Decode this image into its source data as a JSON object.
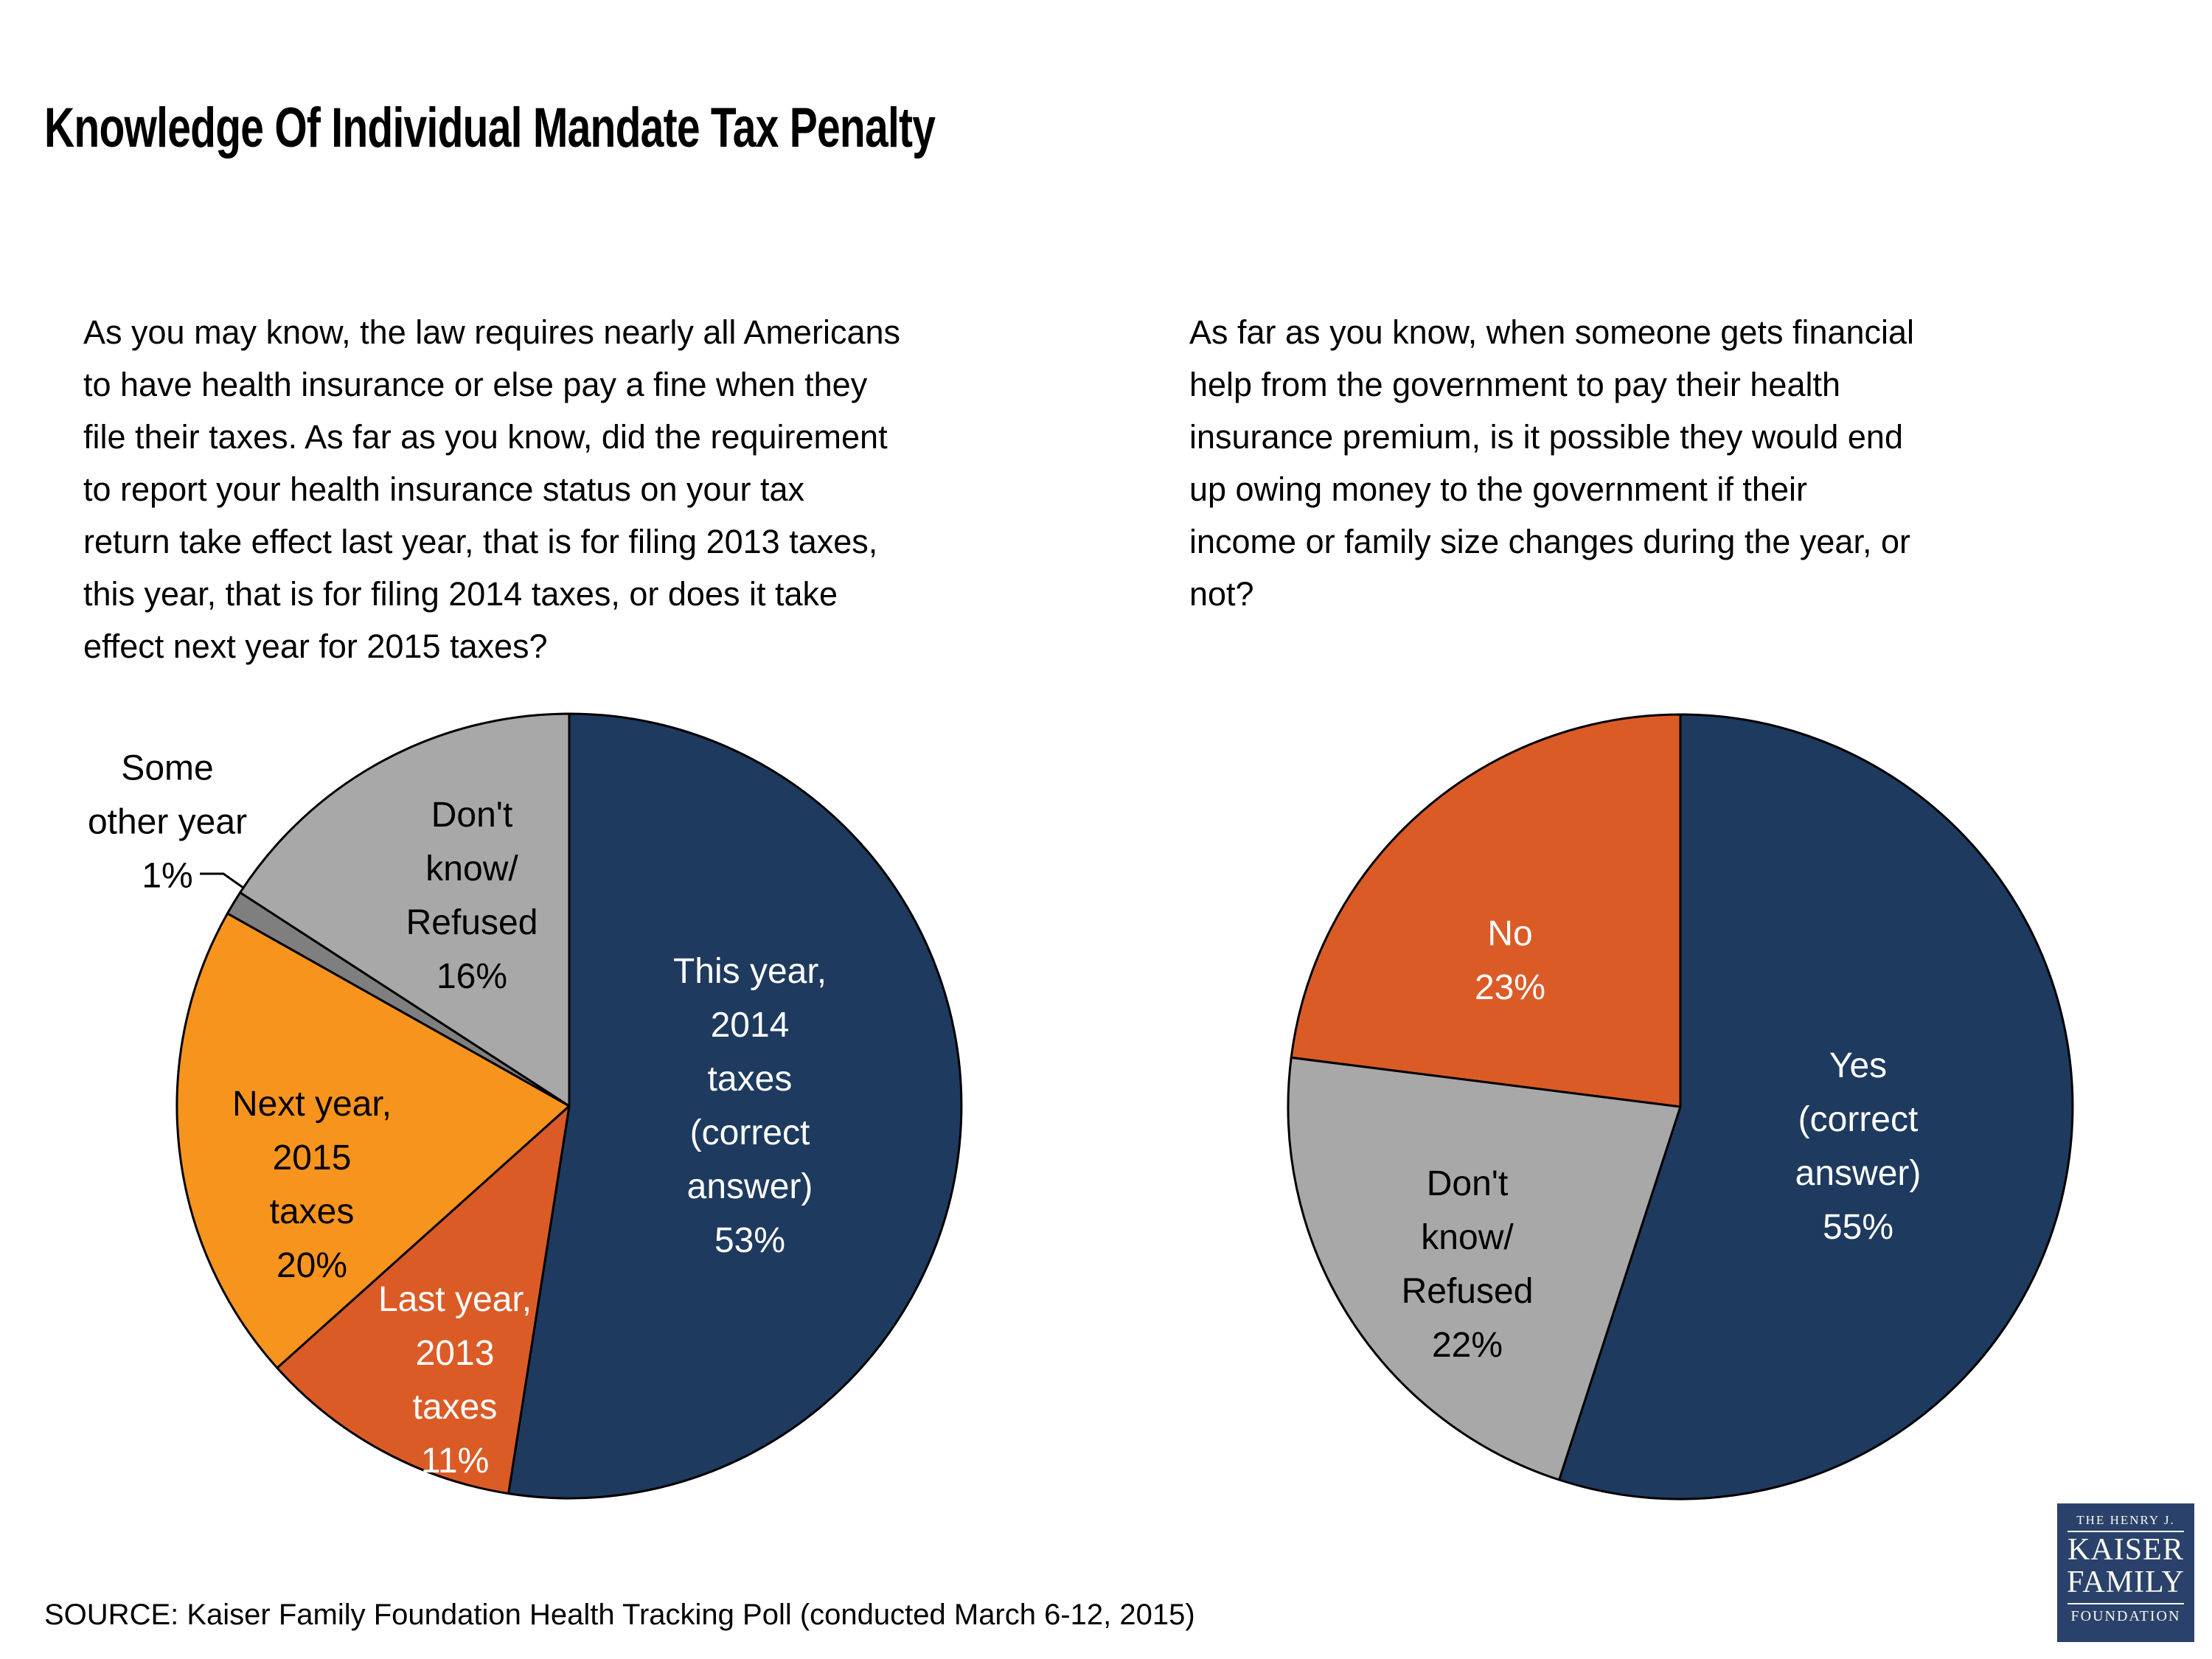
{
  "title": "Knowledge Of Individual Mandate Tax Penalty",
  "source": "SOURCE: Kaiser Family Foundation Health Tracking Poll (conducted March 6-12, 2015)",
  "logo": {
    "top_line": "THE HENRY J.",
    "name_line1": "KAISER",
    "name_line2": "FAMILY",
    "bottom_line": "FOUNDATION",
    "background_color": "#2a426b",
    "text_color": "#fbf9ef"
  },
  "colors": {
    "navy": "#1e3a5f",
    "orange_bright": "#f7941e",
    "orange_dark": "#db5b27",
    "gray_light": "#a8a8a8",
    "gray_dark": "#7f7f7f",
    "outline": "#000000"
  },
  "chart_data": [
    {
      "type": "pie",
      "question": "As you may know, the law requires nearly all Americans\nto have health insurance or else pay a fine when they\nfile their taxes. As far as you know, did the requirement\nto report your health insurance status on your tax\nreturn take effect last year, that is for filing 2013 taxes,\nthis year, that is for filing 2014 taxes, or does it take\neffect next year for 2015 taxes?",
      "start_angle_deg": 0,
      "direction": "clockwise",
      "slices": [
        {
          "name": "This year, 2014 taxes (correct answer)",
          "value": 53,
          "color": "#1e3a5f",
          "label": "This year,\n2014\ntaxes\n(correct\nanswer)\n53%",
          "label_color": "#ffffff",
          "label_position": "inside"
        },
        {
          "name": "Last year, 2013 taxes",
          "value": 11,
          "color": "#db5b27",
          "label": "Last year,\n2013\ntaxes\n11%",
          "label_color": "#ffffff",
          "label_position": "inside"
        },
        {
          "name": "Next year, 2015 taxes",
          "value": 20,
          "color": "#f7941e",
          "label": "Next year,\n2015\ntaxes\n20%",
          "label_color": "#000000",
          "label_position": "inside"
        },
        {
          "name": "Some other year",
          "value": 1,
          "color": "#7f7f7f",
          "label": "Some\nother year\n1%",
          "label_color": "#000000",
          "label_position": "outside-with-leader-line"
        },
        {
          "name": "Don't know/Refused",
          "value": 16,
          "color": "#a8a8a8",
          "label": "Don't\nknow/\nRefused\n16%",
          "label_color": "#000000",
          "label_position": "inside"
        }
      ]
    },
    {
      "type": "pie",
      "question": "As far as you know, when someone gets financial\nhelp from the government to pay their health\ninsurance premium, is it possible they would end\nup owing money to the government if their\nincome or family size changes during the year, or\nnot?",
      "start_angle_deg": 0,
      "direction": "clockwise",
      "slices": [
        {
          "name": "Yes (correct answer)",
          "value": 55,
          "color": "#1e3a5f",
          "label": "Yes\n(correct\nanswer)\n55%",
          "label_color": "#ffffff",
          "label_position": "inside"
        },
        {
          "name": "Don't know/Refused",
          "value": 22,
          "color": "#a8a8a8",
          "label": "Don't\nknow/\nRefused\n22%",
          "label_color": "#000000",
          "label_position": "inside"
        },
        {
          "name": "No",
          "value": 23,
          "color": "#db5b27",
          "label": "No\n23%",
          "label_color": "#ffffff",
          "label_position": "inside"
        }
      ]
    }
  ]
}
